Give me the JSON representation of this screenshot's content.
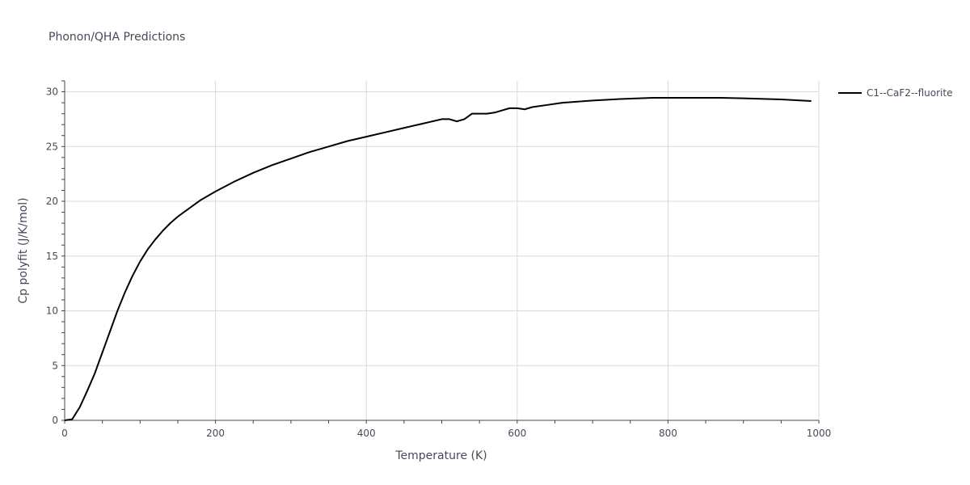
{
  "chart_data": {
    "type": "line",
    "title": "Phonon/QHA Predictions",
    "xlabel": "Temperature (K)",
    "ylabel": "Cp polyfit (J/K/mol)",
    "xlim": [
      0,
      1000
    ],
    "ylim": [
      0,
      31
    ],
    "xticks": [
      0,
      200,
      400,
      600,
      800,
      1000
    ],
    "yticks": [
      0,
      5,
      10,
      15,
      20,
      25,
      30
    ],
    "grid": true,
    "legend_position": "top-right-outside",
    "series": [
      {
        "name": "C1--CaF2--fluorite",
        "color": "#000000",
        "x": [
          0,
          10,
          20,
          30,
          40,
          50,
          60,
          70,
          80,
          90,
          100,
          110,
          120,
          130,
          140,
          150,
          160,
          170,
          180,
          190,
          200,
          225,
          250,
          275,
          300,
          325,
          350,
          375,
          400,
          425,
          450,
          475,
          500,
          510,
          520,
          530,
          540,
          550,
          560,
          570,
          580,
          590,
          600,
          610,
          620,
          640,
          660,
          680,
          700,
          740,
          780,
          810,
          870,
          900,
          950,
          990
        ],
        "y": [
          0,
          0.1,
          1.2,
          2.7,
          4.3,
          6.2,
          8.1,
          10.0,
          11.7,
          13.2,
          14.5,
          15.6,
          16.5,
          17.3,
          18.0,
          18.6,
          19.1,
          19.6,
          20.1,
          20.5,
          20.9,
          21.8,
          22.6,
          23.3,
          23.9,
          24.5,
          25.0,
          25.5,
          25.9,
          26.3,
          26.7,
          27.1,
          27.5,
          27.5,
          27.3,
          27.5,
          28.0,
          28.0,
          28.0,
          28.1,
          28.3,
          28.5,
          28.5,
          28.4,
          28.6,
          28.8,
          29.0,
          29.1,
          29.2,
          29.35,
          29.45,
          29.45,
          29.45,
          29.4,
          29.3,
          29.15
        ]
      }
    ]
  }
}
